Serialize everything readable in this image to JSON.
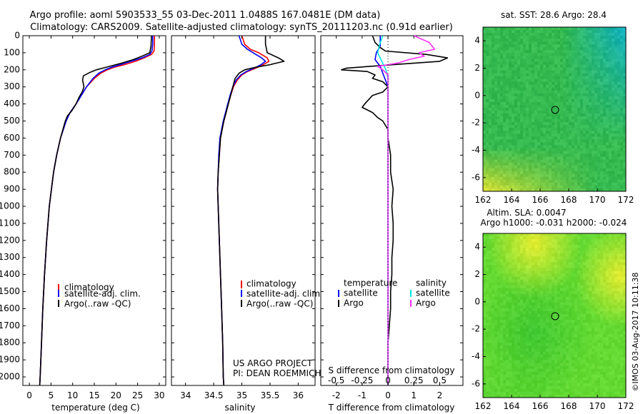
{
  "titles": {
    "line1": "Argo profile: aoml 5903533_55 03-Dec-2011 1.0488S 167.0481E (DM data)",
    "line2": "Climatology: CARS2009. Satellite-adjusted climatology: synTS_20111203.nc (0.91d earlier)"
  },
  "colors": {
    "climatology": "#ff0000",
    "satellite": "#0000ff",
    "argo": "#000000",
    "s_satellite": "#00e5e5",
    "s_argo": "#ff33ff"
  },
  "depth_axis": {
    "ylim": [
      0,
      2050
    ],
    "ticks": [
      0,
      100,
      200,
      300,
      400,
      500,
      600,
      700,
      800,
      900,
      1000,
      1100,
      1200,
      1300,
      1400,
      1500,
      1600,
      1700,
      1800,
      1900,
      2000
    ]
  },
  "chart_data": [
    {
      "type": "line",
      "panel": "temperature",
      "xlabel": "temperature (deg C)",
      "xlim": [
        -1.5,
        31.5
      ],
      "xticks": [
        0,
        5,
        10,
        15,
        20,
        25,
        30
      ],
      "legend": [
        "climatology",
        "satellite-adj. clim.",
        "Argo(..raw -QC)"
      ],
      "series": [
        {
          "name": "climatology",
          "key": "climatology",
          "depth": [
            0,
            50,
            90,
            110,
            130,
            150,
            170,
            185,
            200,
            220,
            250,
            300,
            350,
            400,
            450,
            500,
            600,
            700,
            800,
            900,
            1000,
            1200,
            1400,
            1600,
            1800,
            2000,
            2050
          ],
          "values": [
            28.9,
            28.9,
            28.8,
            28.2,
            26.5,
            24.5,
            22,
            19.6,
            18,
            16.5,
            15,
            13.2,
            12,
            10.8,
            9.4,
            8.5,
            7.2,
            6.3,
            5.6,
            5.1,
            4.6,
            4,
            3.5,
            3.1,
            2.8,
            2.5,
            2.4
          ]
        },
        {
          "name": "satellite-adj. clim.",
          "key": "satellite",
          "depth": [
            0,
            50,
            90,
            110,
            130,
            150,
            170,
            185,
            200,
            220,
            250,
            300,
            350,
            400,
            450,
            500,
            600,
            700,
            800,
            900,
            1000,
            1200,
            1400,
            1600,
            1800,
            2000,
            2050
          ],
          "values": [
            28.5,
            28.5,
            28.3,
            27.8,
            26,
            23.5,
            21,
            19,
            17.5,
            16,
            14.7,
            13.2,
            12,
            10.8,
            9.4,
            8.5,
            7.2,
            6.3,
            5.6,
            5.1,
            4.6,
            4,
            3.5,
            3.1,
            2.8,
            2.5,
            2.4
          ]
        },
        {
          "name": "Argo(..raw -QC)",
          "key": "argo",
          "depth": [
            0,
            60,
            100,
            120,
            140,
            160,
            180,
            190,
            200,
            215,
            235,
            260,
            300,
            330,
            360,
            400,
            440,
            470,
            500,
            600,
            700,
            800,
            900,
            1000,
            1200,
            1400,
            1600,
            1800,
            2000,
            2050
          ],
          "values": [
            28.2,
            28.1,
            27.8,
            26,
            24,
            21.5,
            18.5,
            17,
            15.5,
            14,
            12.5,
            12.3,
            12.6,
            12.2,
            11.5,
            10.8,
            9.8,
            8.8,
            8.3,
            7.2,
            6.3,
            5.6,
            5.1,
            4.6,
            4,
            3.5,
            3.1,
            2.8,
            2.5,
            2.4
          ]
        }
      ]
    },
    {
      "type": "line",
      "panel": "salinity",
      "xlabel": "salinity",
      "xlim": [
        33.75,
        36.3
      ],
      "xticks": [
        34,
        34.5,
        35,
        35.5,
        36
      ],
      "legend": [
        "climatology",
        "satellite-adj. clim.",
        "Argo(..raw -QC)"
      ],
      "annotation": [
        "US ARGO PROJECT",
        "PI: DEAN ROEMMICH"
      ],
      "series": [
        {
          "name": "climatology",
          "key": "climatology",
          "depth": [
            0,
            50,
            80,
            100,
            130,
            150,
            170,
            190,
            210,
            230,
            260,
            300,
            350,
            400,
            450,
            500,
            600,
            700,
            800,
            900,
            1000,
            1200,
            1400,
            1600,
            1800,
            2000,
            2050
          ],
          "values": [
            35.0,
            35.05,
            35.15,
            35.3,
            35.45,
            35.48,
            35.38,
            35.25,
            35.1,
            35.0,
            34.92,
            34.85,
            34.8,
            34.76,
            34.72,
            34.68,
            34.62,
            34.6,
            34.58,
            34.57,
            34.58,
            34.6,
            34.62,
            34.64,
            34.66,
            34.67,
            34.68
          ]
        },
        {
          "name": "satellite-adj. clim.",
          "key": "satellite",
          "depth": [
            0,
            50,
            80,
            100,
            130,
            150,
            170,
            190,
            210,
            230,
            260,
            300,
            350,
            400,
            450,
            500,
            600,
            700,
            800,
            900,
            1000,
            1200,
            1400,
            1600,
            1800,
            2000,
            2050
          ],
          "values": [
            34.95,
            35.0,
            35.1,
            35.2,
            35.35,
            35.42,
            35.34,
            35.22,
            35.08,
            34.98,
            34.9,
            34.84,
            34.79,
            34.75,
            34.71,
            34.67,
            34.61,
            34.59,
            34.58,
            34.57,
            34.58,
            34.6,
            34.62,
            34.64,
            34.66,
            34.67,
            34.68
          ]
        },
        {
          "name": "Argo(..raw -QC)",
          "key": "argo",
          "depth": [
            0,
            50,
            100,
            130,
            150,
            170,
            185,
            200,
            220,
            250,
            300,
            350,
            400,
            450,
            500,
            600,
            700,
            800,
            900,
            1000,
            1200,
            1400,
            1600,
            1800,
            2000,
            2050
          ],
          "values": [
            35.42,
            35.42,
            35.45,
            35.65,
            35.75,
            35.5,
            35.25,
            35.05,
            34.95,
            34.88,
            34.84,
            34.8,
            34.76,
            34.72,
            34.68,
            34.62,
            34.6,
            34.58,
            34.57,
            34.58,
            34.6,
            34.62,
            34.64,
            34.66,
            34.67,
            34.68
          ]
        }
      ]
    },
    {
      "type": "line",
      "panel": "difference",
      "xlabel": "T difference from climatology",
      "xlabel_top": "S difference from climatology",
      "xlim": [
        -2.6,
        2.9
      ],
      "xticks": [
        -2,
        -1,
        0,
        1,
        2
      ],
      "s_xticks": [
        -0.5,
        -0.25,
        0,
        0.25,
        0.5
      ],
      "s_xtick_labels": [
        "-0.5",
        "-0.25",
        "0",
        "0.25",
        "0.5"
      ],
      "s_scale": 4,
      "legend_headers": [
        "temperature",
        "salinity"
      ],
      "legend": [
        "satellite",
        "Argo",
        "satellite",
        "Argo"
      ],
      "series": [
        {
          "name": "T satellite",
          "key": "satellite",
          "depth": [
            0,
            60,
            100,
            140,
            180,
            220,
            260,
            300,
            400,
            500,
            700,
            1000,
            1500,
            2050
          ],
          "values": [
            -0.3,
            -0.3,
            -0.45,
            -0.5,
            -0.3,
            -0.2,
            -0.1,
            0.0,
            0.0,
            0.0,
            0.0,
            0.0,
            0.0,
            0.0
          ]
        },
        {
          "name": "T Argo",
          "key": "argo",
          "depth": [
            0,
            40,
            70,
            90,
            110,
            130,
            150,
            170,
            190,
            200,
            210,
            230,
            250,
            270,
            300,
            330,
            350,
            400,
            420,
            450,
            480,
            500,
            550,
            600,
            700,
            800,
            900,
            1000,
            1100,
            1200,
            1300,
            1400,
            1500,
            1600,
            1800,
            2050
          ],
          "values": [
            -0.6,
            -0.5,
            -0.3,
            -0.1,
            1.5,
            2.3,
            2.0,
            0.2,
            -1.6,
            -1.8,
            -0.8,
            -0.5,
            -0.6,
            -0.2,
            0.0,
            -0.2,
            -0.6,
            -0.9,
            -1.0,
            -0.6,
            -0.4,
            -0.2,
            0.0,
            0.0,
            0.1,
            0.1,
            0.2,
            0.15,
            0.2,
            0.2,
            0.15,
            0.15,
            0.1,
            0.1,
            0.0,
            0.0
          ]
        },
        {
          "name": "S satellite",
          "key": "s_satellite",
          "depth": [
            0,
            50,
            100,
            150,
            200,
            250,
            300,
            400,
            500,
            700,
            1000,
            1500,
            2050
          ],
          "values": [
            -0.05,
            -0.08,
            -0.1,
            -0.06,
            -0.02,
            0.0,
            0.0,
            0.0,
            0.0,
            0.0,
            0.0,
            0.0,
            0.0
          ]
        },
        {
          "name": "S Argo",
          "key": "s_argo",
          "depth": [
            0,
            40,
            80,
            100,
            120,
            140,
            160,
            180,
            200,
            230,
            260,
            300,
            350,
            400,
            500,
            700,
            1000,
            1500,
            2050
          ],
          "values": [
            0.25,
            0.4,
            0.45,
            0.3,
            0.35,
            0.2,
            0.1,
            -0.1,
            -0.05,
            0.0,
            0.0,
            0.0,
            0.0,
            0.0,
            0.0,
            0.0,
            0.0,
            0.0,
            0.0
          ]
        }
      ]
    },
    {
      "type": "heatmap",
      "panel": "sst_map",
      "title": "sat. SST: 28.6  Argo: 28.4",
      "xlim": [
        162,
        172
      ],
      "ylim": [
        -7,
        5
      ],
      "xticks": [
        162,
        164,
        166,
        168,
        170,
        172
      ],
      "yticks": [
        -6,
        -4,
        -2,
        0,
        2,
        4
      ],
      "marker": {
        "lon": 167.05,
        "lat": -1.05
      }
    },
    {
      "type": "heatmap",
      "panel": "sla_map",
      "title_lines": [
        "Altim. SLA: 0.0047",
        "Argo h1000: -0.031 h2000: -0.024"
      ],
      "xlim": [
        162,
        172
      ],
      "ylim": [
        -7,
        5
      ],
      "xticks": [
        162,
        164,
        166,
        168,
        170,
        172
      ],
      "yticks": [
        -6,
        -4,
        -2,
        0,
        2,
        4
      ],
      "marker": {
        "lon": 167.05,
        "lat": -1.05
      }
    }
  ],
  "watermark": "©IMOS 03-Aug-2017 10:11:38"
}
